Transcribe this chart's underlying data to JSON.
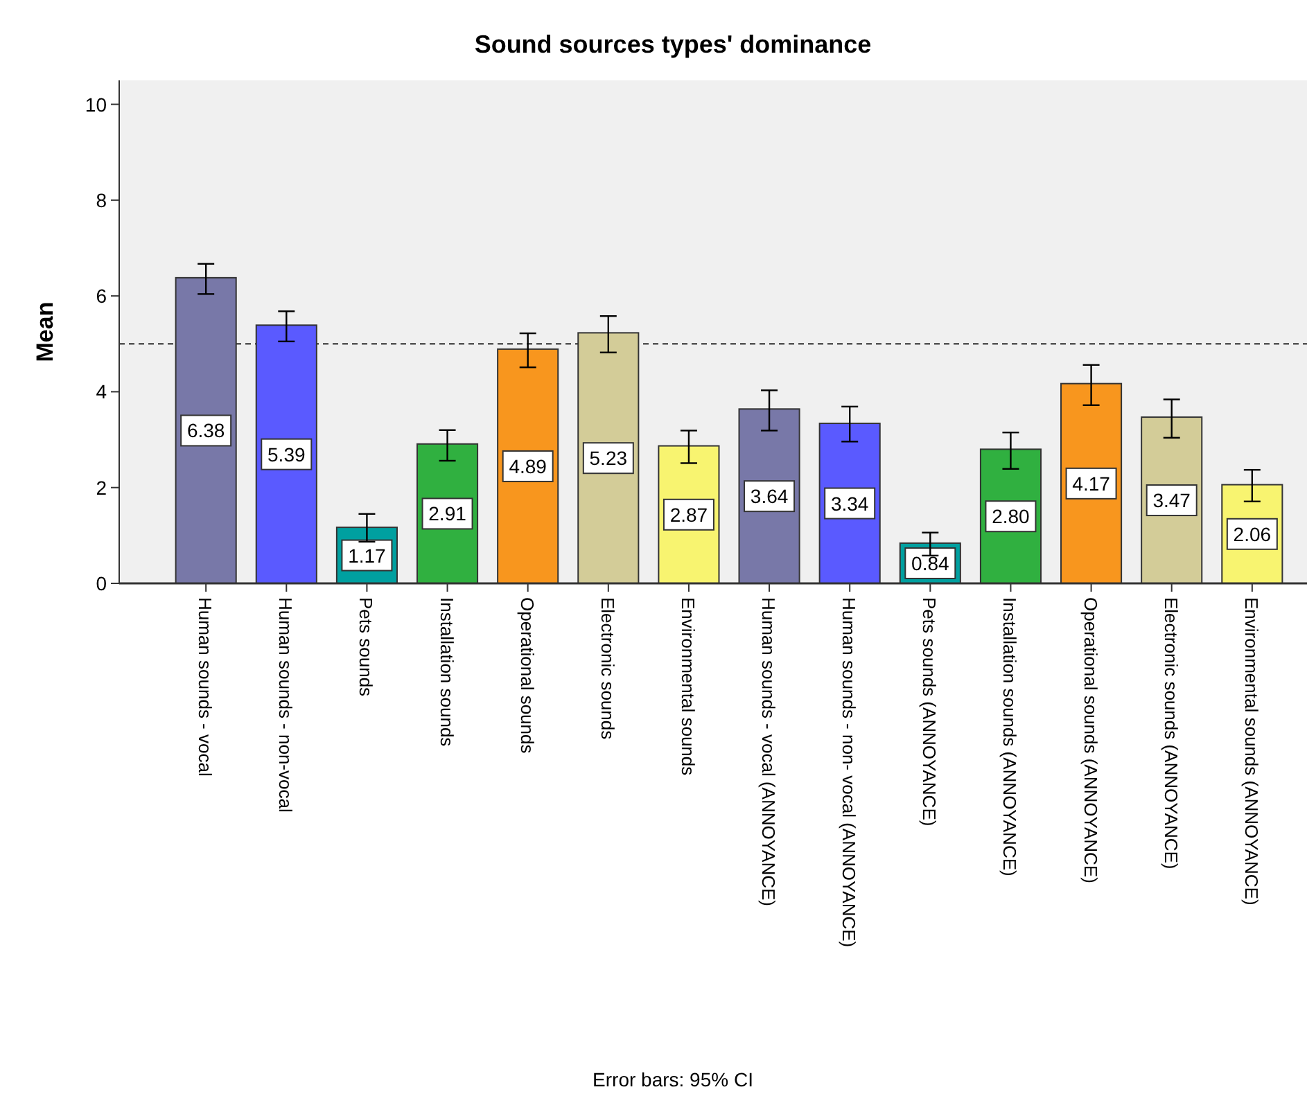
{
  "chart_data": {
    "type": "bar",
    "title": "Sound sources types' dominance",
    "ylabel": "Mean",
    "categories": [
      "Human sounds - vocal",
      "Human sounds - non-vocal",
      "Pets sounds",
      "Installation sounds",
      "Operational sounds",
      "Electronic sounds",
      "Environmental sounds",
      "Human sounds - vocal (ANNOYANCE)",
      "Human sounds - non- vocal (ANNOYANCE)",
      "Pets sounds (ANNOYANCE)",
      "Installation sounds (ANNOYANCE)",
      "Operational sounds (ANNOYANCE)",
      "Electronic sounds (ANNOYANCE)",
      "Environmental sounds (ANNOYANCE)"
    ],
    "values": [
      6.38,
      5.39,
      1.17,
      2.91,
      4.89,
      5.23,
      2.87,
      3.64,
      3.34,
      0.84,
      2.8,
      4.17,
      3.47,
      2.06
    ],
    "value_labels": [
      "6.38",
      "5.39",
      "1.17",
      "2.91",
      "4.89",
      "5.23",
      "2.87",
      "3.64",
      "3.34",
      "0.84",
      "2.80",
      "4.17",
      "3.47",
      "2.06"
    ],
    "colors": [
      "#7878a8",
      "#5a5aff",
      "#00a0a0",
      "#30b040",
      "#f8961e",
      "#d3cc98",
      "#f8f470",
      "#7878a8",
      "#5a5aff",
      "#00a0a0",
      "#30b040",
      "#f8961e",
      "#d3cc98",
      "#f8f470"
    ],
    "errors": [
      [
        6.04,
        6.67
      ],
      [
        5.05,
        5.68
      ],
      [
        0.87,
        1.45
      ],
      [
        2.56,
        3.2
      ],
      [
        4.51,
        5.22
      ],
      [
        4.82,
        5.58
      ],
      [
        2.51,
        3.19
      ],
      [
        3.19,
        4.03
      ],
      [
        2.96,
        3.69
      ],
      [
        0.58,
        1.06
      ],
      [
        2.39,
        3.15
      ],
      [
        3.72,
        4.56
      ],
      [
        3.04,
        3.84
      ],
      [
        1.71,
        2.37
      ]
    ],
    "ylim": [
      0,
      10.5
    ],
    "yticks": [
      0,
      2,
      4,
      6,
      8,
      10
    ],
    "grid": false,
    "ref_lines": [
      {
        "axis": "y",
        "value": 5,
        "line_style": "dashed",
        "color": "#555555"
      }
    ],
    "annotations": [
      "Error bars: 95% CI"
    ]
  }
}
